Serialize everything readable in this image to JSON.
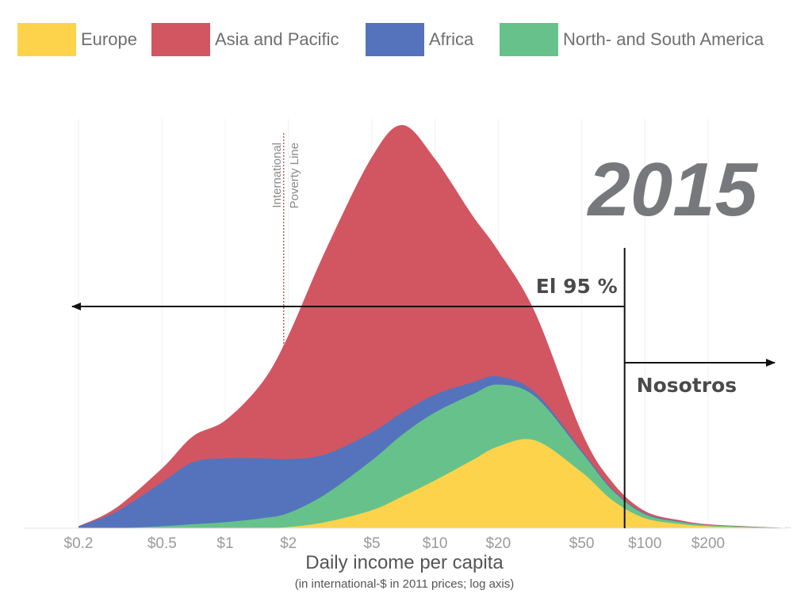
{
  "chart_data": {
    "type": "area",
    "stacked": true,
    "year": "2015",
    "xlabel": "Daily income per capita",
    "xlabel_sub": "(in international-$ in 2011 prices; log axis)",
    "xscale": "log",
    "xlim": [
      0.1,
      500
    ],
    "x_ticks": [
      {
        "value": 0.2,
        "label": "$0.2"
      },
      {
        "value": 0.5,
        "label": "$0.5"
      },
      {
        "value": 1,
        "label": "$1"
      },
      {
        "value": 2,
        "label": "$2"
      },
      {
        "value": 5,
        "label": "$5"
      },
      {
        "value": 10,
        "label": "$10"
      },
      {
        "value": 20,
        "label": "$20"
      },
      {
        "value": 50,
        "label": "$50"
      },
      {
        "value": 100,
        "label": "$100"
      },
      {
        "value": 200,
        "label": "$200"
      }
    ],
    "ylim": [
      0,
      100
    ],
    "grid": "vertical lines at x ticks",
    "legend_position": "top",
    "x": [
      0.2,
      0.3,
      0.5,
      0.7,
      1,
      1.5,
      2,
      3,
      5,
      7,
      10,
      15,
      20,
      30,
      50,
      70,
      100,
      150,
      200,
      300,
      500
    ],
    "series": [
      {
        "name": "Europe",
        "color": "#fdd34c",
        "values": [
          0,
          0,
          0,
          0,
          0,
          0,
          0.3,
          1.5,
          4.5,
          8,
          12,
          17,
          20.5,
          22,
          14,
          7,
          2.5,
          1,
          0.5,
          0.2,
          0
        ]
      },
      {
        "name": "North- and South America",
        "color": "#66c28a",
        "values": [
          0,
          0,
          0.5,
          1,
          1.5,
          2.5,
          3.5,
          7,
          12.5,
          15.5,
          17,
          16.5,
          15.5,
          11,
          5,
          2.5,
          1,
          0.5,
          0.3,
          0.2,
          0
        ]
      },
      {
        "name": "Africa",
        "color": "#5473bc",
        "values": [
          0.5,
          4,
          11,
          15.5,
          16,
          15,
          13.5,
          10,
          7,
          5.5,
          4.5,
          3,
          2,
          1,
          0.5,
          0.3,
          0.2,
          0.1,
          0,
          0,
          0
        ]
      },
      {
        "name": "Asia and Pacific",
        "color": "#d15662",
        "values": [
          0,
          1,
          3.5,
          6.5,
          9.5,
          19,
          31,
          51,
          69,
          72,
          59,
          42,
          31.5,
          20,
          4.5,
          1.7,
          0.6,
          0.3,
          0.2,
          0.1,
          0
        ]
      }
    ],
    "legend": [
      {
        "name": "Europe",
        "color": "#fdd34c"
      },
      {
        "name": "Asia and Pacific",
        "color": "#d15662"
      },
      {
        "name": "Africa",
        "color": "#5473bc"
      },
      {
        "name": "North- and South America",
        "color": "#66c28a"
      }
    ],
    "poverty_line": {
      "value": 1.9,
      "label_lines": [
        "International",
        "Poverty Line"
      ]
    },
    "annotations": {
      "threshold_value": 80,
      "left_label": "El 95 %",
      "right_label": "Nosotros"
    }
  }
}
